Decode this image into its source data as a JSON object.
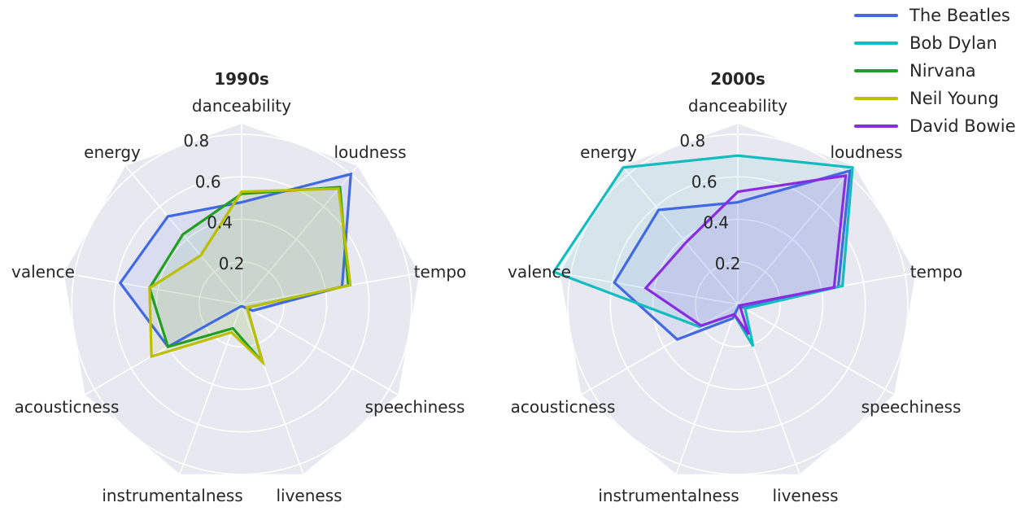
{
  "chart_data": [
    {
      "type": "radar",
      "title": "1990s",
      "axes": [
        "danceability",
        "loudness",
        "tempo",
        "speechiness",
        "liveness",
        "instrumentalness",
        "acousticness",
        "valence",
        "energy"
      ],
      "rlim": [
        0,
        0.85
      ],
      "rticks": [
        0.2,
        0.4,
        0.6,
        0.8
      ],
      "rtick_labels": [
        "0.2",
        "0.4",
        "0.6",
        "0.8"
      ],
      "grid": true,
      "series": [
        {
          "name": "The Beatles",
          "values": [
            0.48,
            0.8,
            0.48,
            0.06,
            0.01,
            0.01,
            0.4,
            0.58,
            0.54
          ]
        },
        {
          "name": "Nirvana",
          "values": [
            0.52,
            0.72,
            0.51,
            0.03,
            0.29,
            0.12,
            0.4,
            0.44,
            0.43
          ]
        },
        {
          "name": "Neil Young",
          "values": [
            0.53,
            0.71,
            0.52,
            0.03,
            0.29,
            0.14,
            0.49,
            0.44,
            0.3
          ]
        }
      ],
      "fill": "#c8d9c4"
    },
    {
      "type": "radar",
      "title": "2000s",
      "axes": [
        "danceability",
        "loudness",
        "tempo",
        "speechiness",
        "liveness",
        "instrumentalness",
        "acousticness",
        "valence",
        "energy"
      ],
      "rlim": [
        0,
        0.85
      ],
      "rticks": [
        0.2,
        0.4,
        0.6,
        0.8
      ],
      "rtick_labels": [
        "0.2",
        "0.4",
        "0.6",
        "0.8"
      ],
      "grid": true,
      "series": [
        {
          "name": "The Beatles",
          "values": [
            0.48,
            0.82,
            0.48,
            0.03,
            0.01,
            0.07,
            0.33,
            0.59,
            0.58
          ]
        },
        {
          "name": "Bob Dylan",
          "values": [
            0.7,
            0.84,
            0.5,
            0.04,
            0.21,
            0.05,
            0.21,
            0.88,
            0.84
          ]
        },
        {
          "name": "David Bowie",
          "values": [
            0.53,
            0.79,
            0.46,
            0.01,
            0.15,
            0.05,
            0.2,
            0.44,
            0.38
          ]
        }
      ],
      "fill": "#cfd4ee"
    }
  ],
  "legend": {
    "position": "top-right",
    "items": [
      {
        "name": "The Beatles",
        "color": "#4169e1"
      },
      {
        "name": "Bob Dylan",
        "color": "#12bcbf"
      },
      {
        "name": "Nirvana",
        "color": "#229f22"
      },
      {
        "name": "Neil Young",
        "color": "#bcbe00"
      },
      {
        "name": "David Bowie",
        "color": "#8a2be2"
      }
    ]
  },
  "colors": {
    "panel_background": "#e8e8f0",
    "grid": "#ffffff",
    "text": "#262626"
  }
}
